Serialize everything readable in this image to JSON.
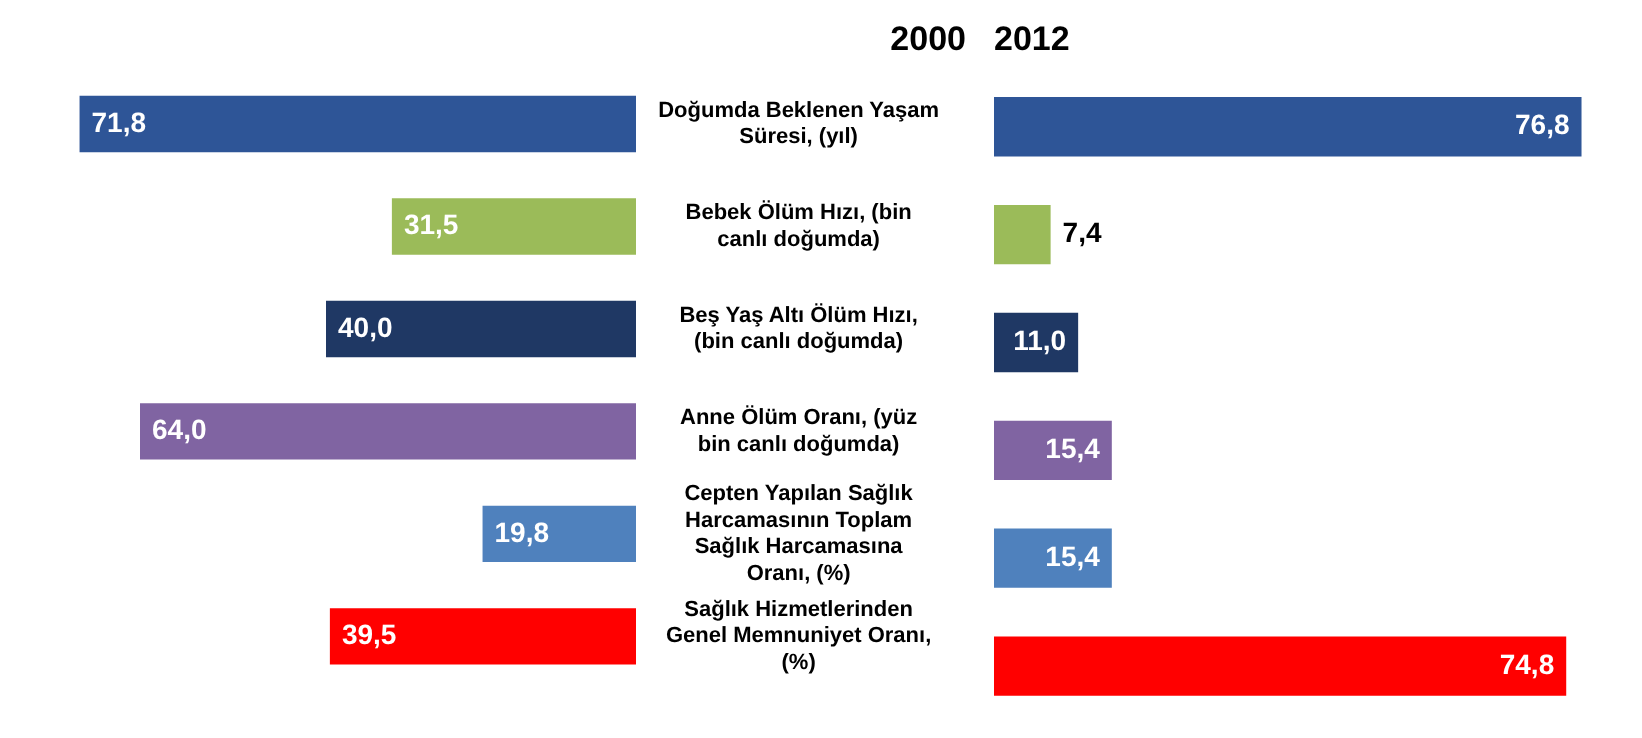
{
  "chart_data": [
    {
      "type": "bar",
      "title": "2000",
      "orientation": "horizontal",
      "categories": [
        "Doğumda Beklenen Yaşam Süresi, (yıl)",
        "Bebek Ölüm Hızı, (bin canlı doğumda)",
        "Beş Yaş Altı Ölüm Hızı, (bin canlı doğumda)",
        "Anne Ölüm Oranı, (yüz bin canlı doğumda)",
        "Cepten Yapılan Sağlık Harcamasının Toplam Sağlık Harcamasına Oranı, (%)",
        "Sağlık Hizmetlerinden Genel Memnuniyet Oranı, (%)"
      ],
      "values": [
        71.8,
        31.5,
        40.0,
        64.0,
        19.8,
        39.5
      ],
      "value_labels": [
        "71,8",
        "31,5",
        "40,0",
        "64,0",
        "19,8",
        "39,5"
      ],
      "colors": [
        "#2e5597",
        "#9bbb59",
        "#1f3864",
        "#8064a2",
        "#4f81bd",
        "#ff0000"
      ],
      "tick_labels": "y",
      "grid": false,
      "legend": false
    },
    {
      "type": "bar",
      "title": "2012",
      "orientation": "horizontal",
      "categories": [
        null,
        null,
        null,
        null,
        null,
        null
      ],
      "values": [
        76.8,
        7.4,
        11.0,
        15.4,
        15.4,
        74.8
      ],
      "value_labels": [
        "76,8",
        "7,4",
        "11,0",
        "15,4",
        "15,4",
        "74,8"
      ],
      "colors": [
        "#2e5597",
        "#9bbb59",
        "#1f3864",
        "#8064a2",
        "#4f81bd",
        "#ff0000"
      ],
      "tick_labels": false,
      "grid": false,
      "legend": false
    }
  ]
}
